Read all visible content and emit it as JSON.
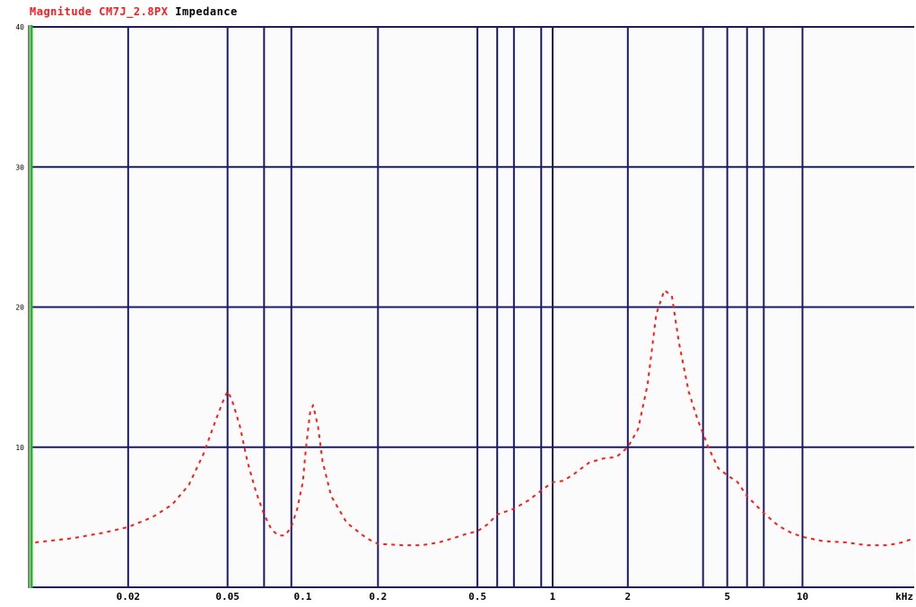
{
  "title": {
    "magnitude": "Magnitude CM7J_2.8PX",
    "impedance": "Impedance"
  },
  "colors": {
    "background": "#fbfbfb",
    "grid": "#1a1a6b",
    "curve": "#ff1a1a",
    "axis_left": "#22bb22"
  },
  "chart_data": {
    "type": "line",
    "title": "Magnitude CM7J_2.8PX Impedance",
    "xlabel": "kHz",
    "ylabel": "",
    "x_scale": "log",
    "xlim": [
      0.0082,
      28
    ],
    "ylim": [
      0,
      40
    ],
    "grid": true,
    "x_ticks": [
      {
        "value": 0.02,
        "label": "0.02"
      },
      {
        "value": 0.05,
        "label": "0.05"
      },
      {
        "value": 0.1,
        "label": "0.1"
      },
      {
        "value": 0.2,
        "label": "0.2"
      },
      {
        "value": 0.5,
        "label": "0.5"
      },
      {
        "value": 1,
        "label": "1"
      },
      {
        "value": 2,
        "label": "2"
      },
      {
        "value": 5,
        "label": "5"
      },
      {
        "value": 10,
        "label": "10"
      },
      {
        "value": 28,
        "label": "kHz"
      }
    ],
    "x_gridlines": [
      0.02,
      0.05,
      0.07,
      0.09,
      0.2,
      0.5,
      0.6,
      0.7,
      0.9,
      1,
      2,
      4,
      5,
      6,
      7,
      10
    ],
    "y_ticks": [
      {
        "value": 0,
        "label": ""
      },
      {
        "value": 10,
        "label": "10"
      },
      {
        "value": 20,
        "label": "20"
      },
      {
        "value": 30,
        "label": "30"
      },
      {
        "value": 40,
        "label": "40"
      }
    ],
    "series": [
      {
        "name": "Impedance",
        "x": [
          0.0085,
          0.012,
          0.016,
          0.02,
          0.025,
          0.03,
          0.035,
          0.04,
          0.045,
          0.048,
          0.05,
          0.052,
          0.056,
          0.06,
          0.065,
          0.07,
          0.075,
          0.08,
          0.085,
          0.09,
          0.095,
          0.1,
          0.103,
          0.107,
          0.11,
          0.115,
          0.12,
          0.13,
          0.15,
          0.18,
          0.2,
          0.25,
          0.3,
          0.35,
          0.4,
          0.45,
          0.5,
          0.55,
          0.6,
          0.7,
          0.8,
          0.9,
          1.0,
          1.1,
          1.2,
          1.4,
          1.6,
          1.8,
          2.0,
          2.2,
          2.4,
          2.6,
          2.8,
          3.0,
          3.2,
          3.5,
          3.8,
          4.2,
          4.6,
          5.0,
          5.5,
          6.0,
          7.0,
          8.0,
          9.0,
          10.0,
          12.0,
          15.0,
          18.0,
          22.0,
          25.0,
          28.0
        ],
        "y": [
          3.2,
          3.5,
          3.9,
          4.3,
          5.0,
          5.9,
          7.3,
          9.5,
          12.0,
          13.3,
          14.0,
          13.4,
          11.5,
          9.0,
          6.8,
          5.2,
          4.1,
          3.7,
          3.7,
          4.3,
          5.6,
          7.5,
          10.0,
          12.5,
          13.0,
          11.5,
          9.0,
          6.5,
          4.6,
          3.5,
          3.1,
          3.0,
          3.0,
          3.2,
          3.5,
          3.8,
          4.0,
          4.5,
          5.2,
          5.6,
          6.2,
          6.9,
          7.5,
          7.6,
          8.0,
          8.9,
          9.2,
          9.3,
          10.0,
          11.3,
          14.5,
          19.5,
          21.2,
          20.8,
          17.5,
          14.0,
          12.0,
          10.0,
          8.5,
          8.0,
          7.5,
          6.5,
          5.3,
          4.4,
          3.9,
          3.6,
          3.3,
          3.2,
          3.0,
          3.0,
          3.2,
          3.5
        ]
      }
    ]
  }
}
